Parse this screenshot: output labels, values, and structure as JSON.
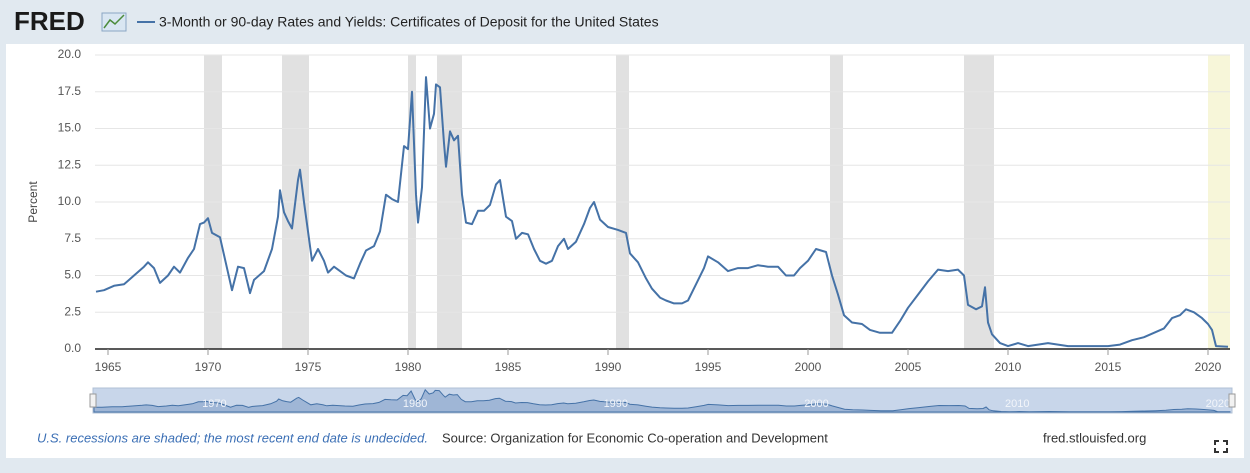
{
  "header": {
    "logo": "FRED"
  },
  "chart_data": {
    "type": "line",
    "x_label": null,
    "y_label": "Percent",
    "x": [
      1964.4,
      1964.8,
      1965.3,
      1965.8,
      1966.3,
      1966.8,
      1967.0,
      1967.3,
      1967.6,
      1968.0,
      1968.3,
      1968.6,
      1969.0,
      1969.3,
      1969.6,
      1969.8,
      1970.0,
      1970.2,
      1970.6,
      1970.9,
      1971.2,
      1971.5,
      1971.8,
      1972.1,
      1972.3,
      1972.8,
      1973.2,
      1973.5,
      1973.6,
      1973.8,
      1974.0,
      1974.2,
      1974.5,
      1974.6,
      1974.8,
      1975.0,
      1975.2,
      1975.5,
      1975.8,
      1976.0,
      1976.3,
      1976.6,
      1976.9,
      1977.3,
      1977.6,
      1977.9,
      1978.3,
      1978.6,
      1978.9,
      1979.2,
      1979.5,
      1979.8,
      1980.0,
      1980.2,
      1980.4,
      1980.5,
      1980.7,
      1980.9,
      1981.1,
      1981.3,
      1981.4,
      1981.6,
      1981.8,
      1981.9,
      1982.1,
      1982.3,
      1982.5,
      1982.7,
      1982.9,
      1983.2,
      1983.5,
      1983.8,
      1984.1,
      1984.4,
      1984.6,
      1984.9,
      1985.2,
      1985.4,
      1985.7,
      1986.0,
      1986.3,
      1986.6,
      1986.9,
      1987.2,
      1987.5,
      1987.8,
      1988.0,
      1988.4,
      1988.8,
      1989.1,
      1989.3,
      1989.6,
      1990.0,
      1990.5,
      1990.9,
      1991.1,
      1991.5,
      1991.9,
      1992.2,
      1992.6,
      1992.9,
      1993.3,
      1993.7,
      1994.0,
      1994.4,
      1994.8,
      1995.0,
      1995.5,
      1996.0,
      1996.5,
      1997.0,
      1997.5,
      1998.0,
      1998.5,
      1998.9,
      1999.3,
      1999.6,
      2000.0,
      2000.4,
      2000.9,
      2001.2,
      2001.5,
      2001.8,
      2002.2,
      2002.7,
      2003.1,
      2003.6,
      2004.2,
      2004.6,
      2005.0,
      2005.5,
      2006.0,
      2006.5,
      2007.0,
      2007.5,
      2007.8,
      2008.0,
      2008.4,
      2008.7,
      2008.85,
      2009.0,
      2009.2,
      2009.6,
      2010.0,
      2010.5,
      2011.0,
      2011.5,
      2012.0,
      2012.5,
      2013.0,
      2014.0,
      2015.0,
      2015.6,
      2016.2,
      2016.8,
      2017.3,
      2017.8,
      2018.2,
      2018.6,
      2018.9,
      2019.3,
      2019.7,
      2020.0,
      2020.2,
      2020.4,
      2021.0
    ],
    "series": [
      {
        "name": "3-Month or 90-day Rates and Yields: Certificates of Deposit for the United States",
        "color": "#4572a7",
        "values": [
          3.9,
          4.0,
          4.3,
          4.4,
          5.0,
          5.6,
          5.9,
          5.5,
          4.5,
          5.0,
          5.6,
          5.2,
          6.2,
          6.8,
          8.5,
          8.6,
          8.9,
          7.9,
          7.6,
          5.8,
          4.0,
          5.6,
          5.5,
          3.8,
          4.7,
          5.3,
          6.8,
          9.0,
          10.8,
          9.3,
          8.7,
          8.2,
          11.5,
          12.2,
          10.0,
          8.0,
          6.0,
          6.8,
          6.0,
          5.2,
          5.6,
          5.3,
          5.0,
          4.8,
          5.8,
          6.7,
          7.0,
          8.0,
          10.5,
          10.2,
          10.0,
          13.8,
          13.6,
          17.5,
          10.5,
          8.6,
          11.0,
          18.5,
          15.0,
          16.0,
          18.0,
          17.8,
          14.0,
          12.4,
          14.8,
          14.2,
          14.5,
          10.5,
          8.6,
          8.5,
          9.4,
          9.4,
          9.8,
          11.2,
          11.5,
          9.0,
          8.7,
          7.5,
          7.9,
          7.8,
          6.8,
          6.0,
          5.8,
          6.0,
          7.0,
          7.5,
          6.8,
          7.3,
          8.5,
          9.6,
          10.0,
          8.8,
          8.3,
          8.1,
          7.9,
          6.5,
          5.9,
          4.8,
          4.1,
          3.5,
          3.3,
          3.1,
          3.1,
          3.3,
          4.4,
          5.5,
          6.3,
          5.9,
          5.3,
          5.5,
          5.5,
          5.7,
          5.6,
          5.6,
          5.0,
          5.0,
          5.5,
          6.0,
          6.8,
          6.6,
          5.0,
          3.7,
          2.3,
          1.8,
          1.7,
          1.3,
          1.1,
          1.1,
          1.9,
          2.8,
          3.7,
          4.6,
          5.4,
          5.3,
          5.4,
          5.0,
          3.0,
          2.7,
          2.9,
          4.2,
          1.8,
          1.0,
          0.4,
          0.2,
          0.4,
          0.2,
          0.3,
          0.4,
          0.3,
          0.2,
          0.2,
          0.2,
          0.3,
          0.6,
          0.8,
          1.1,
          1.4,
          2.1,
          2.3,
          2.7,
          2.5,
          2.1,
          1.7,
          1.3,
          0.2,
          0.15
        ]
      }
    ],
    "xlim": [
      1964.35,
      2021.1
    ],
    "xticks": [
      1965,
      1970,
      1975,
      1980,
      1985,
      1990,
      1995,
      2000,
      2005,
      2010,
      2015,
      2020
    ],
    "ylim": [
      0,
      20
    ],
    "yticks": [
      {
        "value": 0,
        "label": "0.0"
      },
      2.5,
      {
        "value": 5,
        "label": "5.0"
      },
      7.5,
      {
        "value": 10,
        "label": "10.0"
      },
      12.5,
      {
        "value": 15,
        "label": "15.0"
      },
      17.5,
      {
        "value": 20,
        "label": "20.0"
      }
    ],
    "grid": true,
    "recessions": [
      [
        1969.8,
        1970.7
      ],
      [
        1973.7,
        1975.05
      ],
      [
        1980.0,
        1980.4
      ],
      [
        1981.45,
        1982.7
      ],
      [
        1990.4,
        1991.05
      ],
      [
        2001.1,
        2001.75
      ],
      [
        2007.8,
        2009.3
      ]
    ],
    "recession_color": "#e1e1e1",
    "undecided_recession": [
      2020.0,
      2021.1
    ],
    "undecided_color": "#f7f6d9",
    "navigator_ticks": [
      1970,
      1980,
      1990,
      2000,
      2010,
      2020
    ]
  },
  "footer": {
    "note": "U.S. recessions are shaded; the most recent end date is undecided.",
    "source": "Source: Organization for Economic Co-operation and Development",
    "site": "fred.stlouisfed.org"
  }
}
